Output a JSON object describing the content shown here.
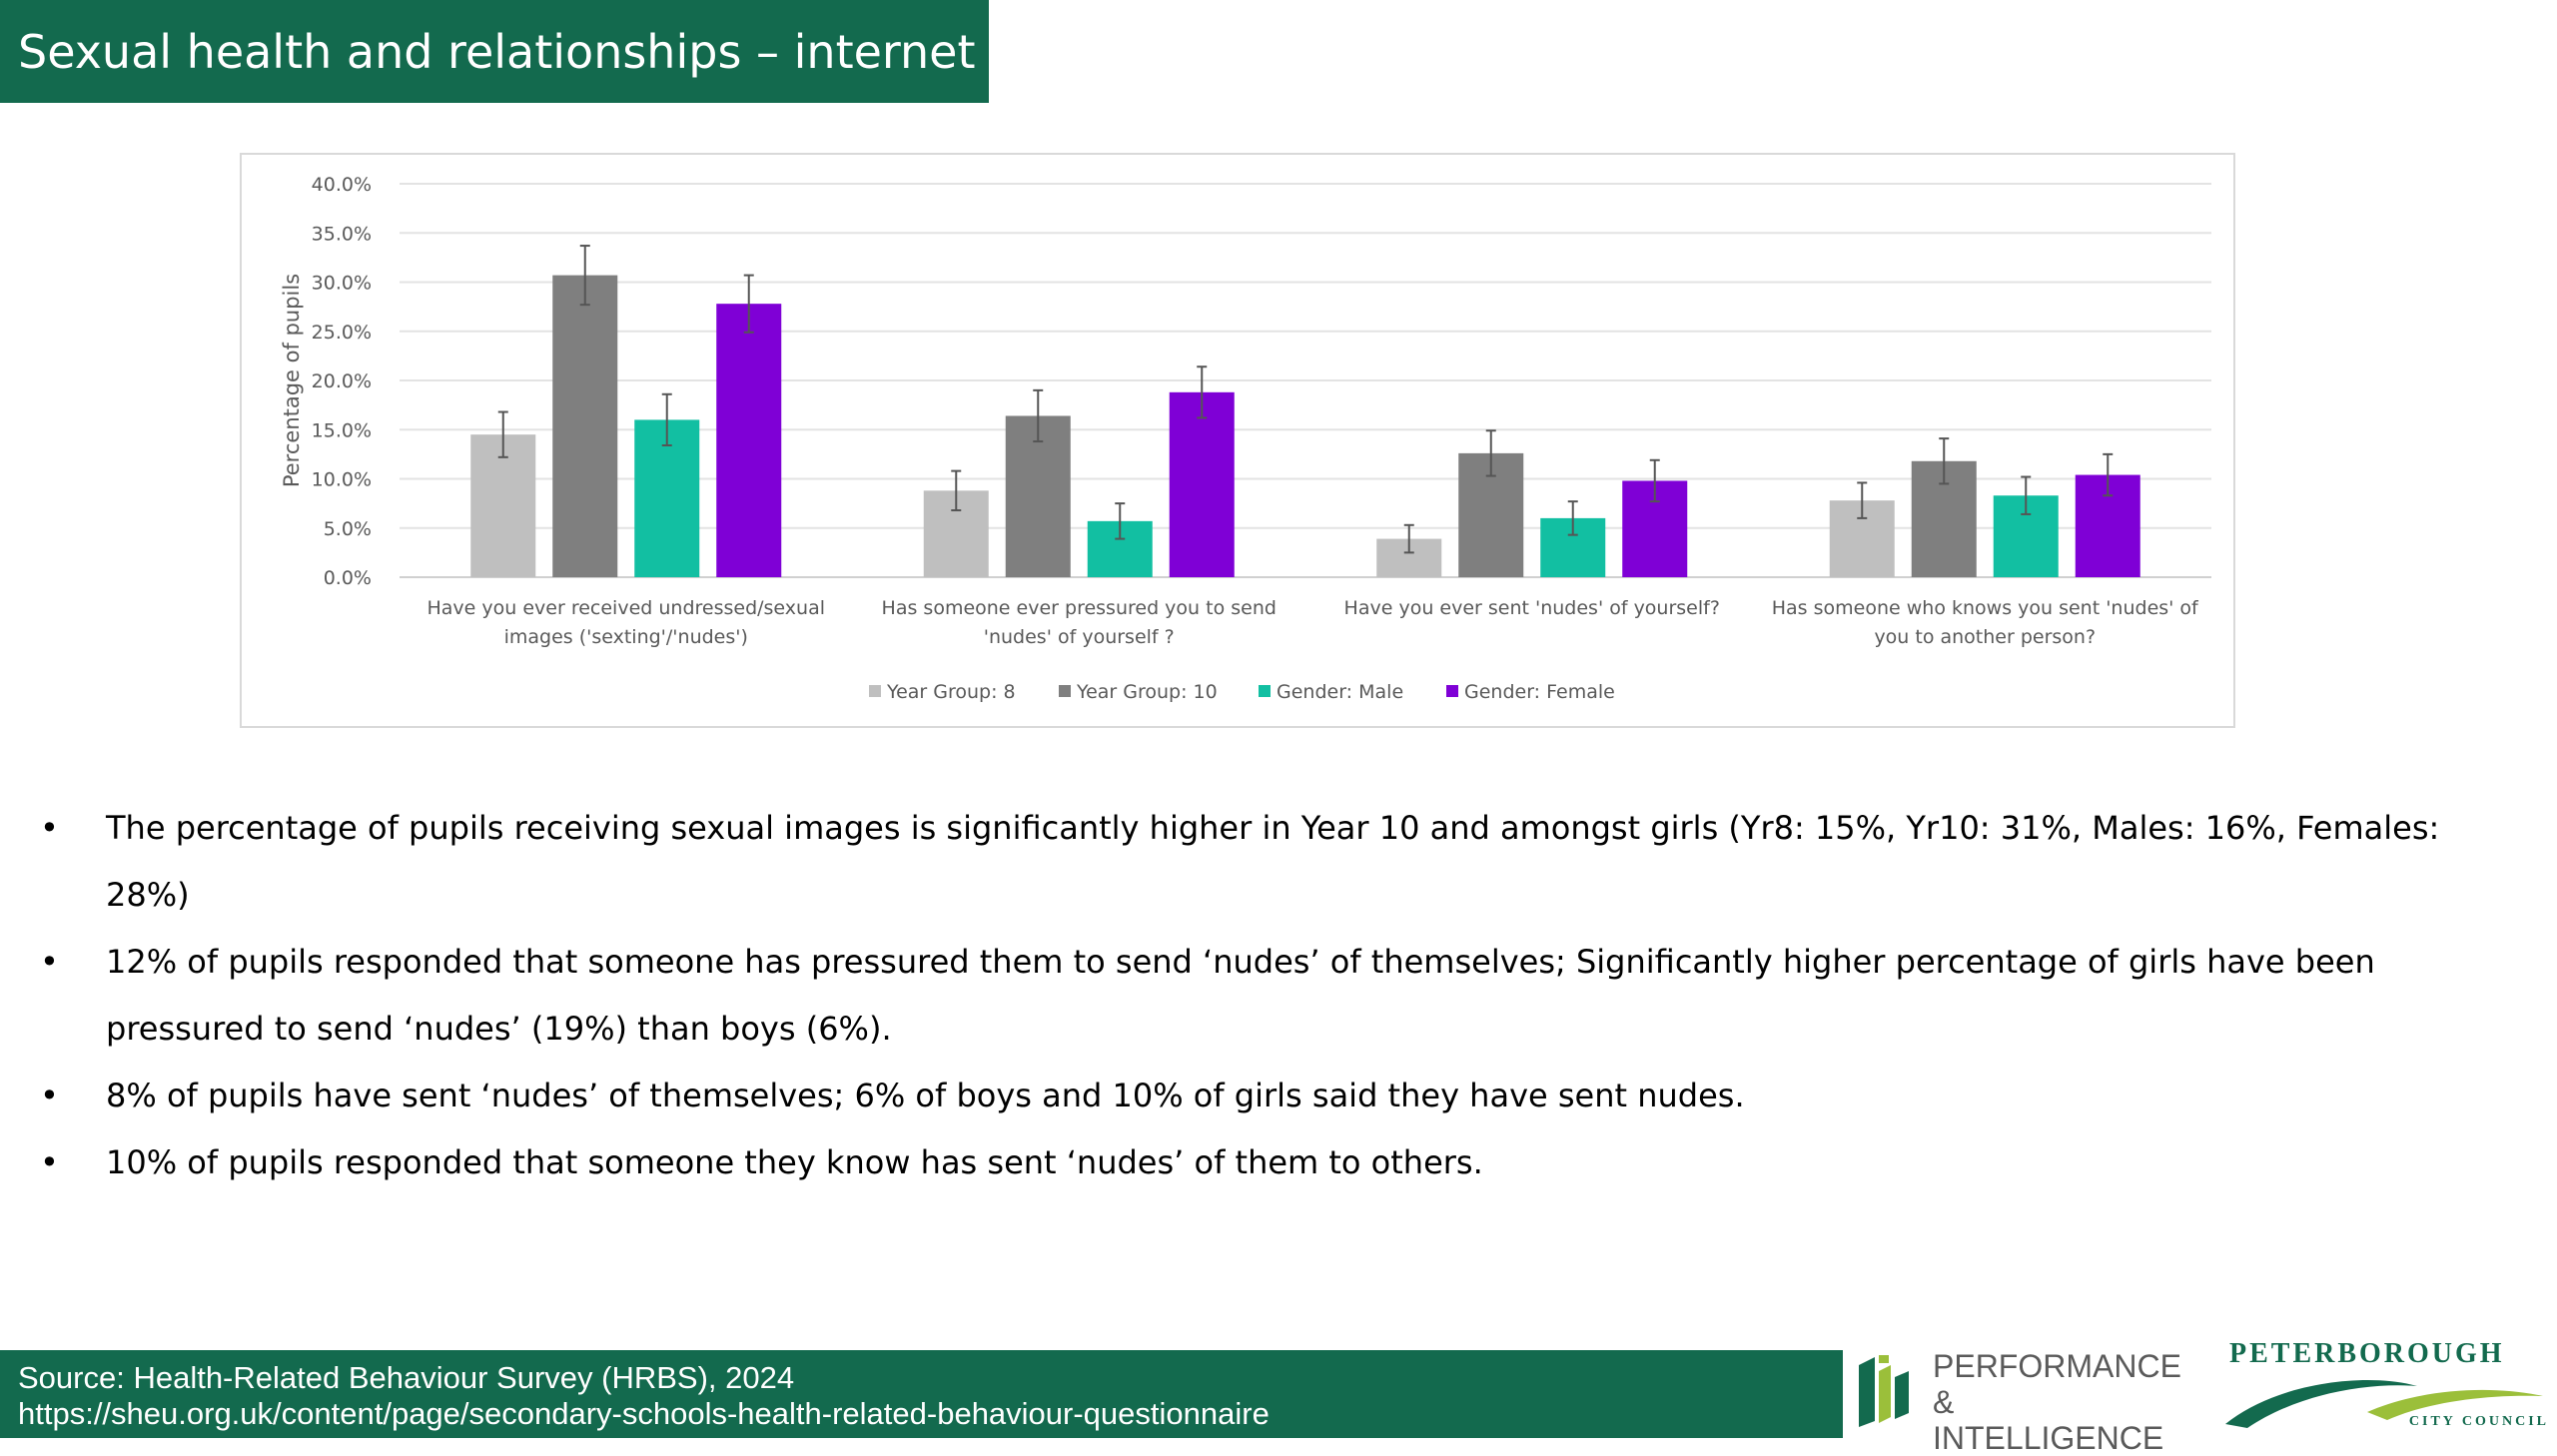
{
  "header": {
    "title": "Sexual health and relationships – internet"
  },
  "chart_data": {
    "type": "bar",
    "title": "",
    "ylabel": "Percentage of pupils",
    "xlabel": "",
    "ylim": [
      0,
      40
    ],
    "yticks": [
      "0.0%",
      "5.0%",
      "10.0%",
      "15.0%",
      "20.0%",
      "25.0%",
      "30.0%",
      "35.0%",
      "40.0%"
    ],
    "grid": true,
    "legend_position": "bottom",
    "categories": [
      [
        "Have you ever received undressed/sexual",
        "images ('sexting'/'nudes')"
      ],
      [
        "Has someone ever pressured you to send",
        "'nudes' of yourself ?"
      ],
      [
        "Have you ever sent 'nudes' of yourself?"
      ],
      [
        "Has someone who knows you sent 'nudes' of",
        "you to another person?"
      ]
    ],
    "series": [
      {
        "name": "Year Group: 8",
        "color": "#bfbfbf",
        "values": [
          14.5,
          8.8,
          3.9,
          7.8
        ],
        "error": [
          2.3,
          2.0,
          1.4,
          1.8
        ]
      },
      {
        "name": "Year Group: 10",
        "color": "#7f7f7f",
        "values": [
          30.7,
          16.4,
          12.6,
          11.8
        ],
        "error": [
          3.0,
          2.6,
          2.3,
          2.3
        ]
      },
      {
        "name": "Gender: Male",
        "color": "#12bfa2",
        "values": [
          16.0,
          5.7,
          6.0,
          8.3
        ],
        "error": [
          2.6,
          1.8,
          1.7,
          1.9
        ]
      },
      {
        "name": "Gender: Female",
        "color": "#7f00d6",
        "values": [
          27.8,
          18.8,
          9.8,
          10.4
        ],
        "error": [
          2.9,
          2.6,
          2.1,
          2.1
        ]
      }
    ]
  },
  "bullets": [
    "The percentage of pupils receiving sexual images is significantly higher in Year 10 and amongst girls (Yr8: 15%, Yr10: 31%, Males: 16%, Females: 28%)",
    "12% of pupils responded that someone has pressured them to send ‘nudes’ of themselves; Significantly higher percentage of girls have been pressured to send ‘nudes’ (19%) than boys (6%).",
    "8% of pupils have sent ‘nudes’ of themselves; 6% of boys and 10% of girls said they have sent nudes.",
    "10% of pupils responded that someone they know has sent ‘nudes’ of them to others."
  ],
  "bullet_symbol": "•",
  "footer": {
    "source": "Source: Health-Related Behaviour Survey (HRBS), 2024",
    "url": "https://sheu.org.uk/content/page/secondary-schools-health-related-behaviour-questionnaire"
  },
  "logos": {
    "pi_line1": "PERFORMANCE &",
    "pi_line2": "INTELLIGENCE",
    "pcc_name": "PETERBOROUGH",
    "pcc_sub": "CITY COUNCIL",
    "brand_color": "#136a4e",
    "accent_color": "#9bbf3a"
  }
}
